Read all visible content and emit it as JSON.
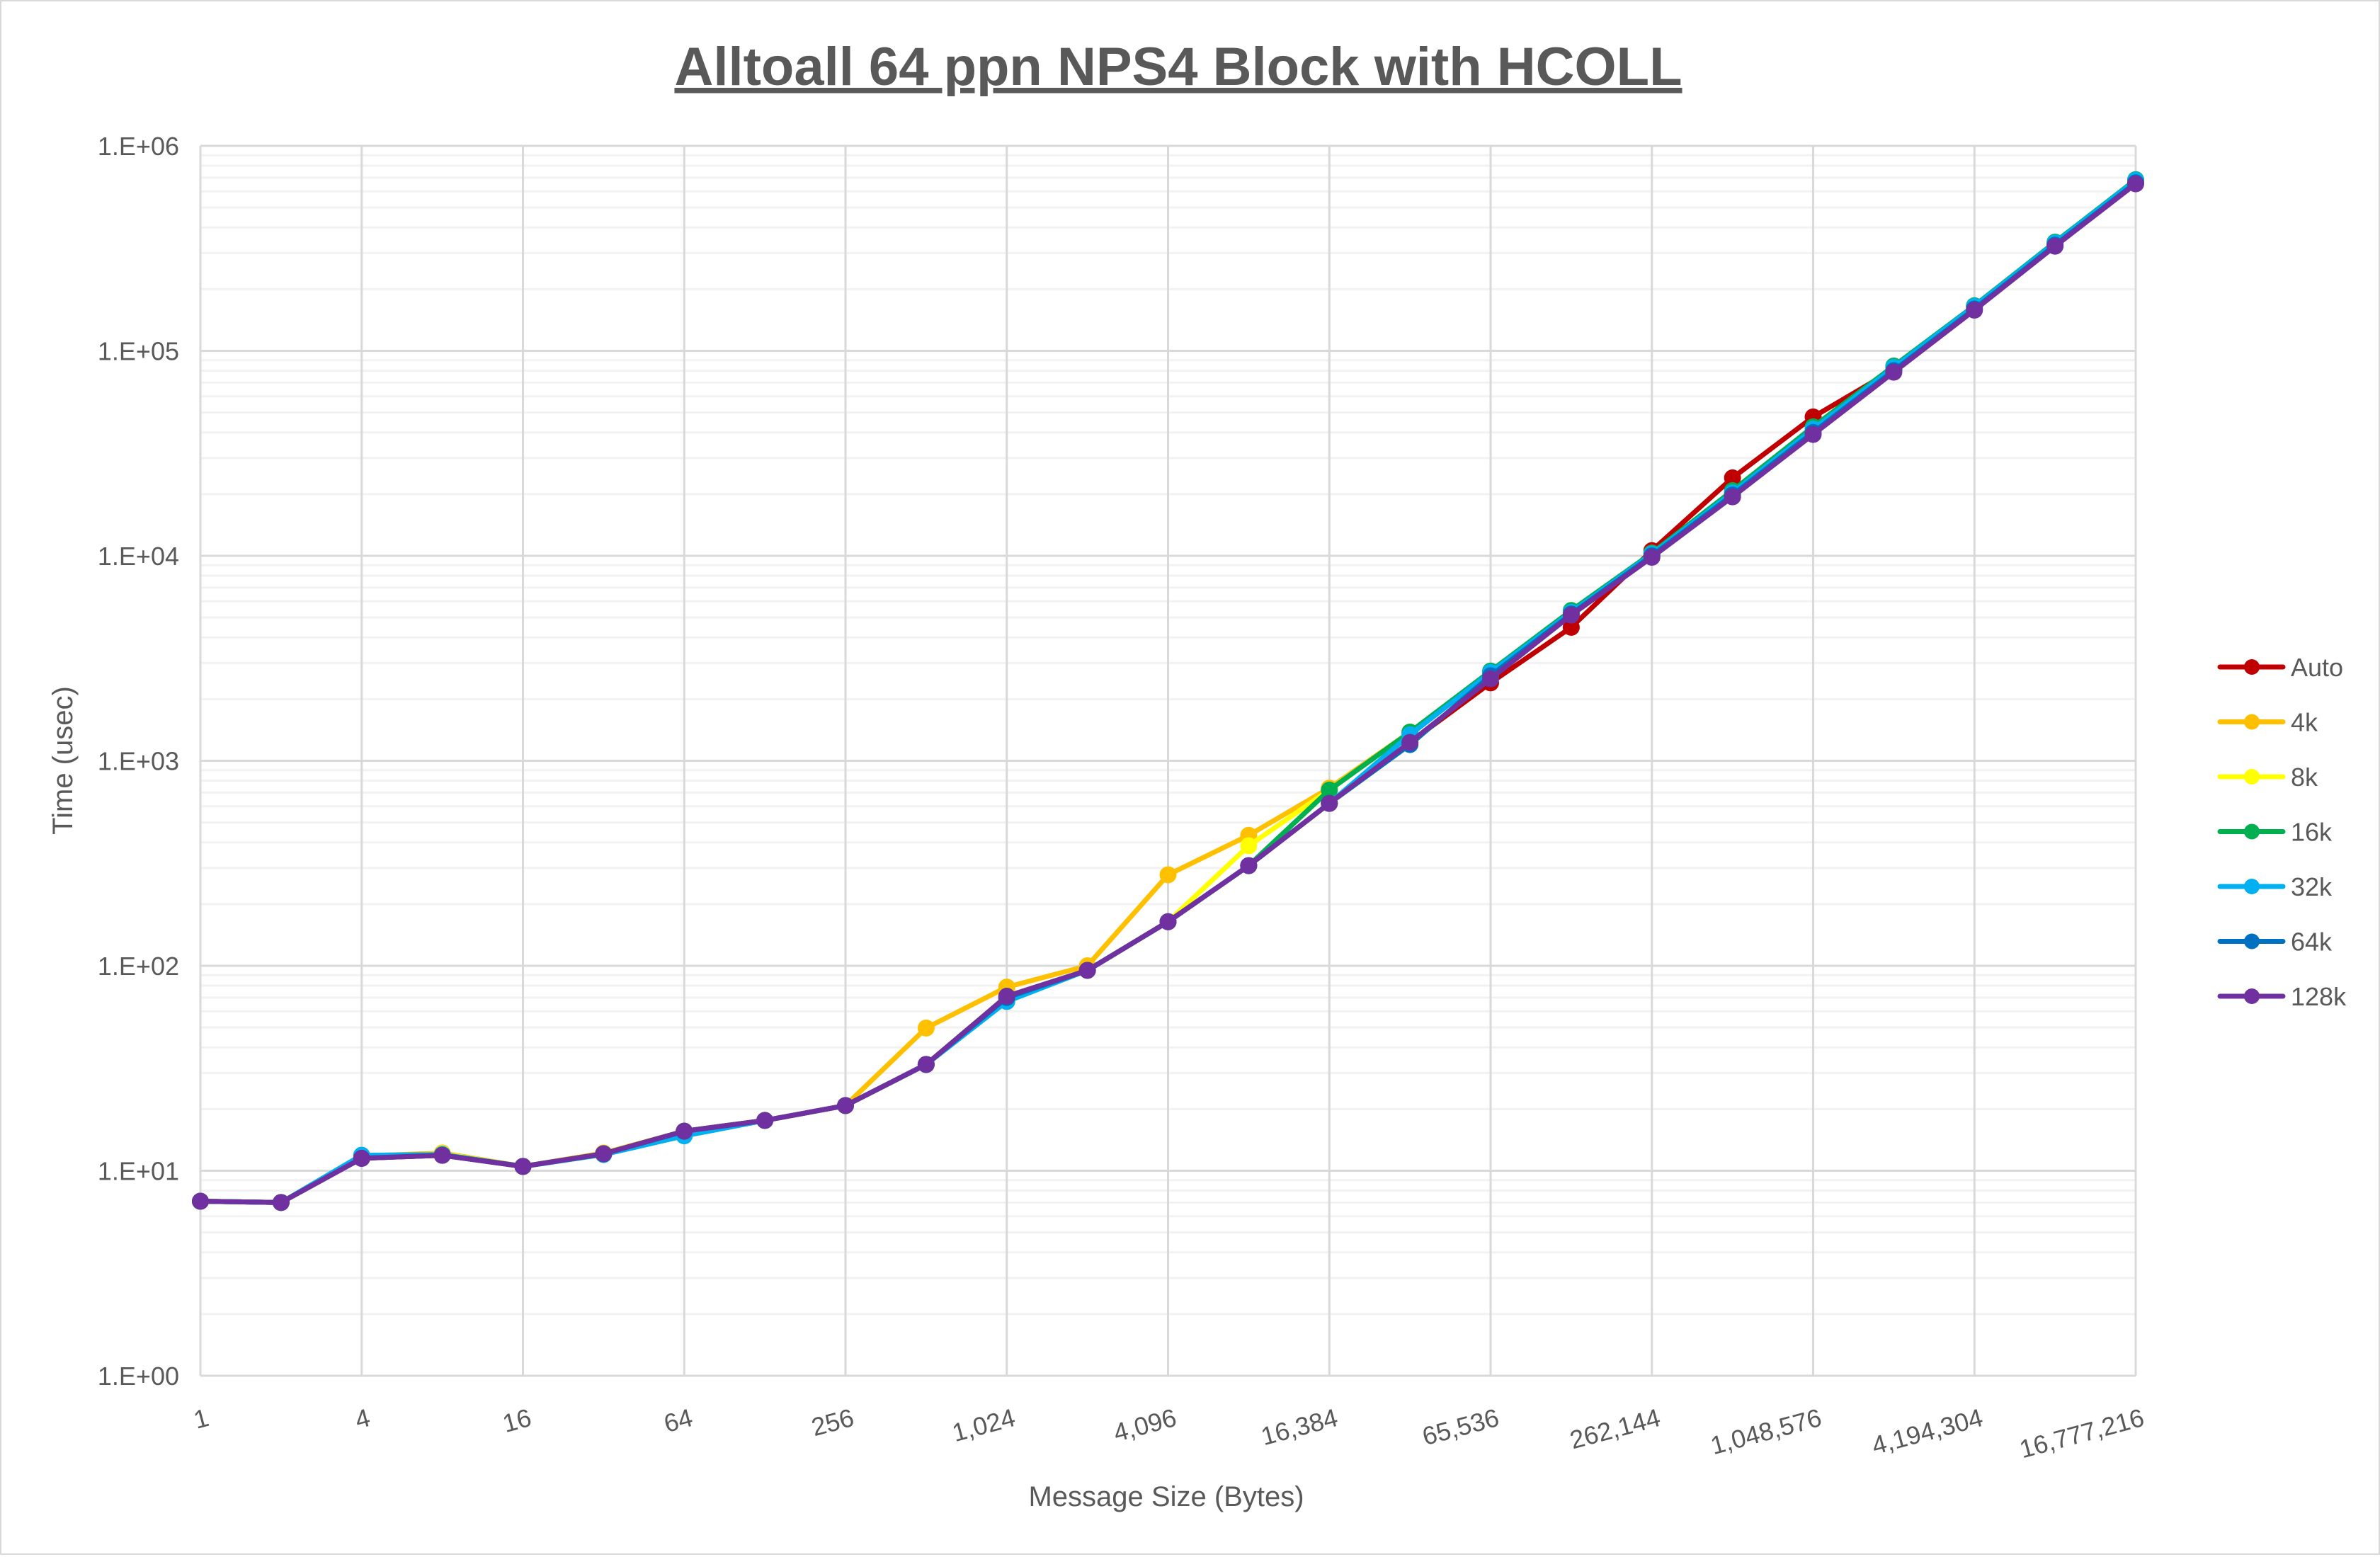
{
  "chart_data": {
    "type": "line",
    "title": "Alltoall 64 ppn NPS4 Block with HCOLL",
    "xlabel": "Message Size (Bytes)",
    "ylabel": "Time (usec)",
    "x_scale": "log2",
    "y_scale": "log10",
    "xlim": [
      1,
      16777216
    ],
    "ylim": [
      1,
      1000000
    ],
    "grid": true,
    "legend_position": "right",
    "x": [
      1,
      2,
      4,
      8,
      16,
      32,
      64,
      128,
      256,
      512,
      1024,
      2048,
      4096,
      8192,
      16384,
      32768,
      65536,
      131072,
      262144,
      524288,
      1048576,
      2097152,
      4194304,
      8388608,
      16777216
    ],
    "x_tick_labels": [
      "1",
      "4",
      "16",
      "64",
      "256",
      "1,024",
      "4,096",
      "16,384",
      "65,536",
      "262,144",
      "1,048,576",
      "4,194,304",
      "16,777,216"
    ],
    "x_tick_values": [
      1,
      4,
      16,
      64,
      256,
      1024,
      4096,
      16384,
      65536,
      262144,
      1048576,
      4194304,
      16777216
    ],
    "y_tick_labels": [
      "1.E+00",
      "1.E+01",
      "1.E+02",
      "1.E+03",
      "1.E+04",
      "1.E+05",
      "1.E+06"
    ],
    "y_tick_values": [
      1,
      10,
      100,
      1000,
      10000,
      100000,
      1000000
    ],
    "series": [
      {
        "name": "Auto",
        "color": "#c00000",
        "values": [
          7.1,
          7.0,
          11.5,
          11.9,
          10.5,
          12.1,
          15.6,
          17.6,
          20.8,
          33,
          69,
          95,
          164,
          308,
          620,
          1230,
          2400,
          4480,
          10600,
          24000,
          47600,
          81000,
          165000,
          330000,
          665000
        ]
      },
      {
        "name": "4k",
        "color": "#ffc000",
        "values": [
          7.1,
          7.0,
          11.8,
          12.2,
          10.5,
          12.2,
          15.6,
          17.6,
          20.8,
          49.7,
          78.7,
          100,
          278,
          433,
          736,
          1380,
          2700,
          5300,
          10300,
          20500,
          42000,
          83000,
          165000,
          335000,
          675000
        ]
      },
      {
        "name": "8k",
        "color": "#ffff00",
        "values": [
          7.1,
          7.0,
          11.6,
          12.1,
          10.5,
          12.1,
          15.6,
          17.6,
          20.8,
          33,
          71,
          95,
          164,
          385,
          720,
          1380,
          2700,
          5350,
          10300,
          20600,
          42200,
          83500,
          166000,
          336000,
          680000
        ]
      },
      {
        "name": "16k",
        "color": "#00b050",
        "values": [
          7.1,
          7.0,
          11.6,
          12.0,
          10.5,
          12.1,
          15.6,
          17.6,
          20.8,
          33,
          71,
          95,
          164,
          308,
          720,
          1380,
          2740,
          5410,
          10300,
          20800,
          42600,
          84300,
          166000,
          339000,
          684000
        ]
      },
      {
        "name": "32k",
        "color": "#00b0f0",
        "values": [
          7.1,
          7.0,
          11.9,
          12.0,
          10.5,
          12.0,
          14.8,
          17.6,
          20.8,
          33,
          67,
          95,
          164,
          308,
          620,
          1340,
          2700,
          5300,
          10200,
          20300,
          41500,
          83000,
          165000,
          336000,
          680000
        ]
      },
      {
        "name": "64k",
        "color": "#0070c0",
        "values": [
          7.1,
          7.0,
          11.5,
          11.9,
          10.5,
          12.1,
          15.6,
          17.6,
          20.8,
          33,
          70,
          95,
          164,
          308,
          620,
          1200,
          2600,
          5200,
          10000,
          19800,
          40000,
          80000,
          160000,
          328000,
          660000
        ]
      },
      {
        "name": "128k",
        "color": "#7030a0",
        "values": [
          7.1,
          7.0,
          11.5,
          11.9,
          10.5,
          12.1,
          15.6,
          17.6,
          20.8,
          33,
          71,
          95,
          164,
          308,
          620,
          1230,
          2510,
          5140,
          9840,
          19400,
          39100,
          78700,
          158000,
          324000,
          653000
        ]
      }
    ]
  }
}
